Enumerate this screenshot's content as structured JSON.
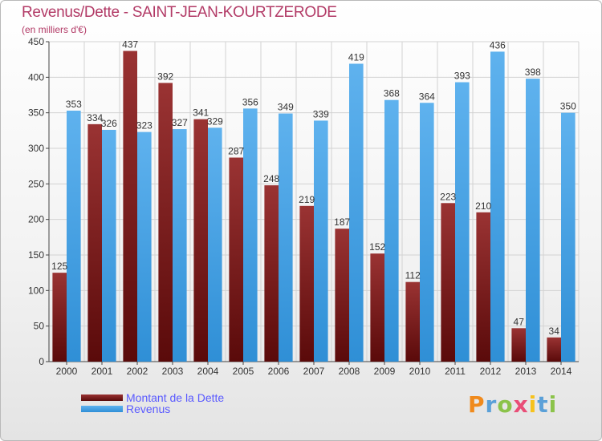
{
  "title": "Revenus/Dette - SAINT-JEAN-KOURTZERODE",
  "subtitle": "(en milliers d'€)",
  "colors": {
    "dette": "#7a1c1c",
    "revenus": "#3d9ee3",
    "title": "#b23a66",
    "legend_text": "#5a5aff"
  },
  "legend": {
    "dette_label": "Montant de la Dette",
    "revenus_label": "Revenus"
  },
  "logo": {
    "letters": [
      "P",
      "r",
      "o",
      "x",
      "i",
      "t",
      "i"
    ],
    "colors": [
      "#f08a1c",
      "#5aa0d8",
      "#8bc34a",
      "#e94e77",
      "#f6c21c",
      "#5aa0d8",
      "#8bc34a"
    ]
  },
  "chart_data": {
    "type": "bar",
    "categories": [
      "2000",
      "2001",
      "2002",
      "2003",
      "2004",
      "2005",
      "2006",
      "2007",
      "2008",
      "2009",
      "2010",
      "2011",
      "2012",
      "2013",
      "2014"
    ],
    "series": [
      {
        "name": "Montant de la Dette",
        "values": [
          125,
          334,
          437,
          392,
          341,
          287,
          248,
          219,
          187,
          152,
          112,
          223,
          210,
          47,
          34
        ]
      },
      {
        "name": "Revenus",
        "values": [
          353,
          326,
          323,
          327,
          329,
          356,
          349,
          339,
          419,
          368,
          364,
          393,
          436,
          398,
          350
        ]
      }
    ],
    "yticks": [
      "0",
      "50",
      "100",
      "150",
      "200",
      "250",
      "300",
      "350",
      "400",
      "450"
    ],
    "ylim": [
      0,
      450
    ],
    "grid": true,
    "legend_position": "bottom-left"
  }
}
